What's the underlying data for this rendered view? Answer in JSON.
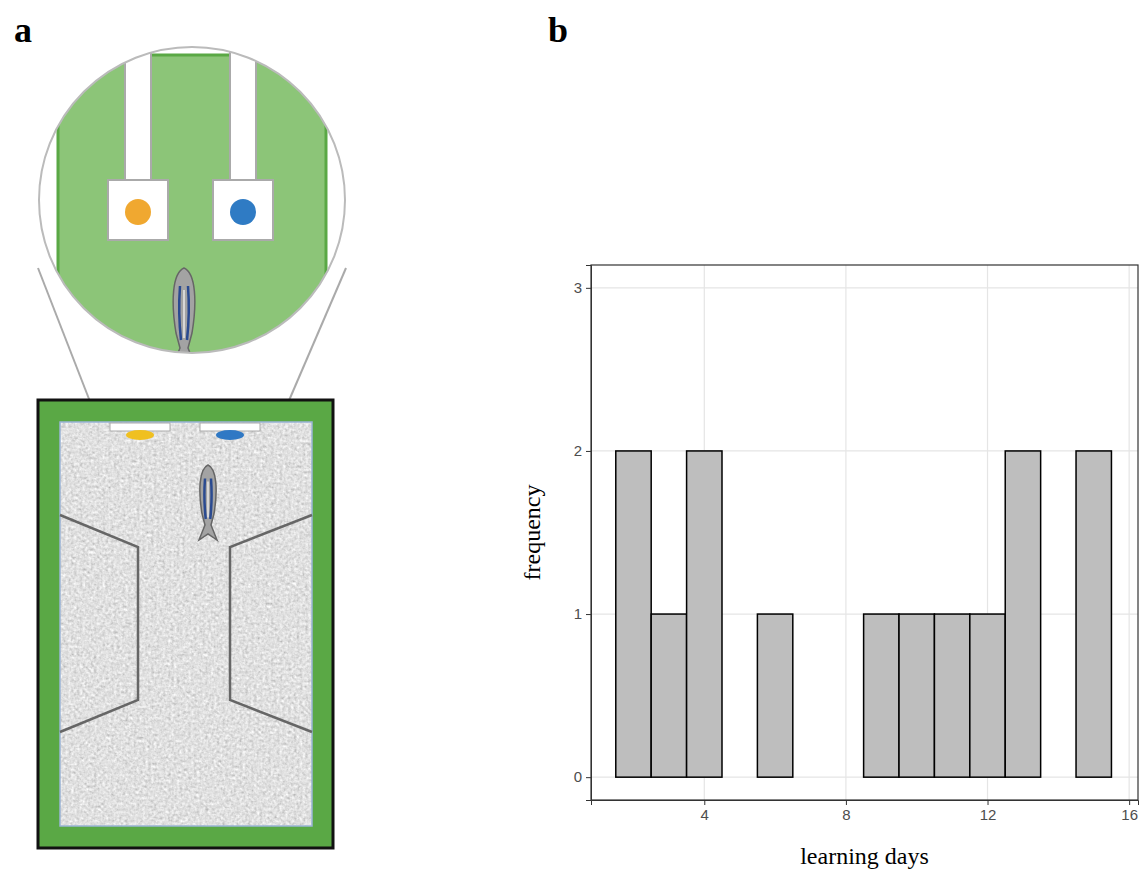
{
  "panels": [
    "a",
    "b"
  ],
  "chart_data": {
    "type": "histogram",
    "bins": [
      1.5,
      2.5,
      3.5,
      4.5,
      5.5,
      6.5,
      7.5,
      8.5,
      9.5,
      10.5,
      11.5,
      12.5,
      13.5,
      14.5,
      15.5
    ],
    "counts": [
      2,
      1,
      2,
      0,
      1,
      0,
      0,
      1,
      1,
      1,
      1,
      2,
      0,
      2
    ],
    "xlabel": "learning days",
    "ylabel": "frequency",
    "xlim": [
      0.8,
      16.25
    ],
    "ylim": [
      -0.14,
      3.14
    ],
    "xticks": [
      4,
      8,
      12,
      16
    ],
    "yticks": [
      0,
      1,
      2,
      3
    ],
    "grid": true,
    "color": "#bebebe"
  }
}
